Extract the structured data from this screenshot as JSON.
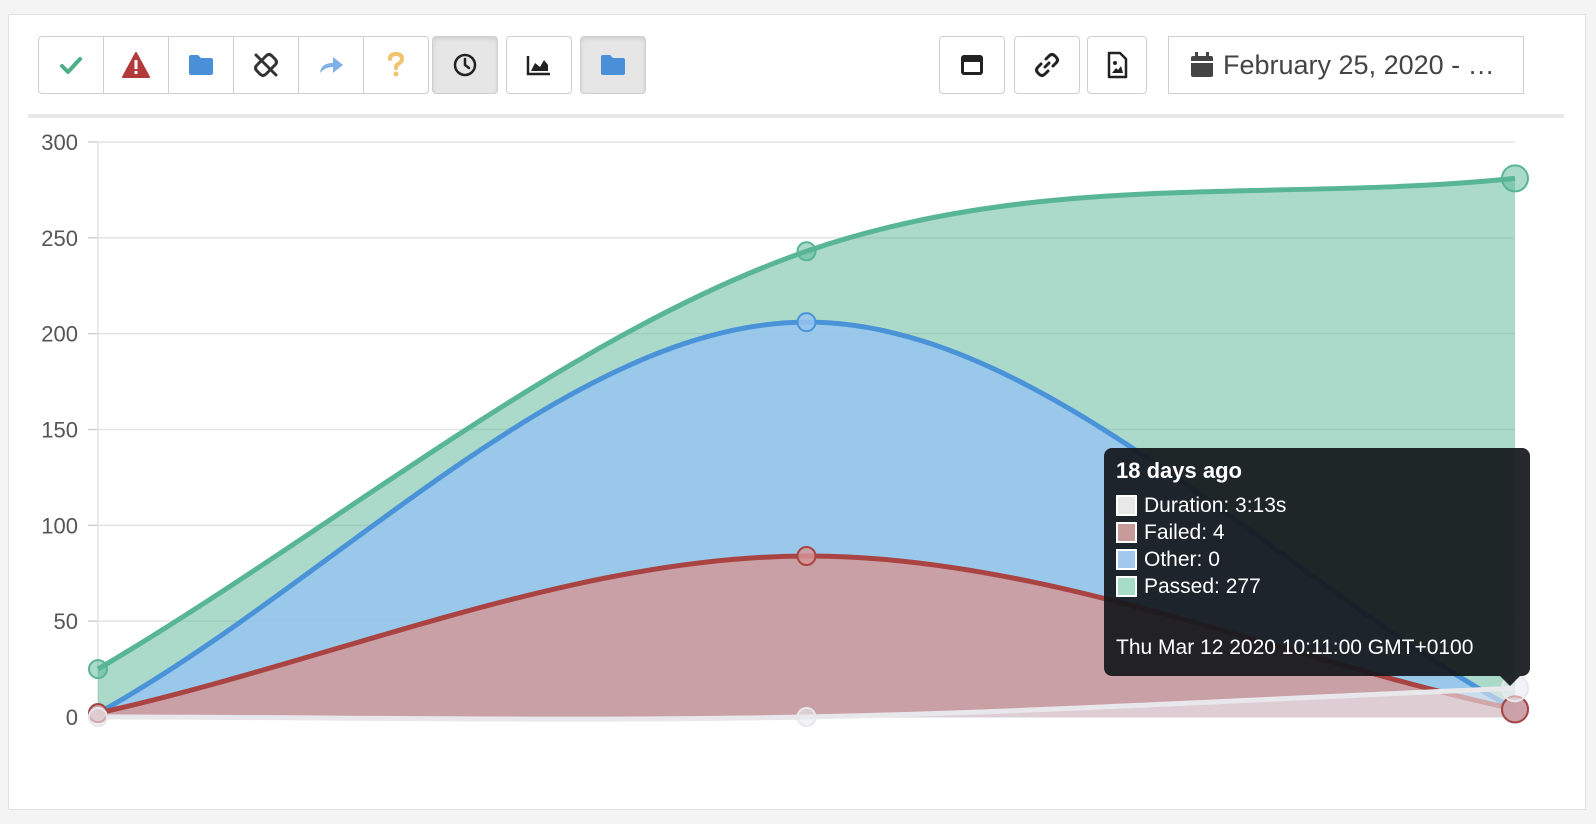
{
  "toolbar": {
    "status_filters": [
      {
        "icon": "check-icon",
        "active": true,
        "color": "#4caf8a"
      },
      {
        "icon": "warning-icon",
        "active": true,
        "color": "#b23a3a"
      },
      {
        "icon": "folder-icon",
        "active": true,
        "color": "#4a90d9"
      },
      {
        "icon": "broken-link-icon",
        "active": false,
        "color": "#333333"
      },
      {
        "icon": "redo-arrow-icon",
        "active": false,
        "color": "#7fb0e8"
      },
      {
        "icon": "question-icon",
        "active": false,
        "color": "#f0c36d"
      }
    ],
    "clock_button": {
      "icon": "clock-icon",
      "active": true
    },
    "area_chart_button": {
      "icon": "area-chart-icon",
      "active": false
    },
    "folder_button": {
      "icon": "folder-icon",
      "active": true,
      "color": "#4a90d9"
    },
    "right_buttons": [
      {
        "icon": "window-icon"
      },
      {
        "icon": "link-icon"
      },
      {
        "icon": "file-image-icon"
      }
    ],
    "date_range": {
      "icon": "calendar-icon",
      "label": "February 25, 2020 - …"
    }
  },
  "tooltip": {
    "title": "18 days ago",
    "rows": [
      {
        "label": "Duration: 3:13s",
        "color": "#e8e8e8"
      },
      {
        "label": "Failed: 4",
        "color": "#c99a9a"
      },
      {
        "label": "Other: 0",
        "color": "#a3c8ef"
      },
      {
        "label": "Passed: 277",
        "color": "#a6dcc8"
      }
    ],
    "footer": "Thu Mar 12 2020 10:11:00 GMT+0100"
  },
  "chart_data": {
    "type": "area",
    "ylim": [
      0,
      300
    ],
    "yticks": [
      0,
      50,
      100,
      150,
      200,
      250,
      300
    ],
    "grid": true,
    "x": [
      0,
      1,
      2
    ],
    "series": [
      {
        "name": "Passed",
        "values": [
          25,
          243,
          281
        ],
        "stroke": "#58b596",
        "fill": "rgba(88,181,150,0.50)"
      },
      {
        "name": "Other",
        "values": [
          2,
          206,
          4
        ],
        "stroke": "#4a93d8",
        "fill": "rgba(150,196,240,0.85)"
      },
      {
        "name": "Failed",
        "values": [
          2,
          84,
          4
        ],
        "stroke": "#a94442",
        "fill": "rgba(214,150,150,0.80)"
      },
      {
        "name": "Duration",
        "values": [
          0,
          0,
          15
        ],
        "stroke": "#e8e8ec",
        "fill": "rgba(235,235,240,0.6)"
      }
    ]
  }
}
